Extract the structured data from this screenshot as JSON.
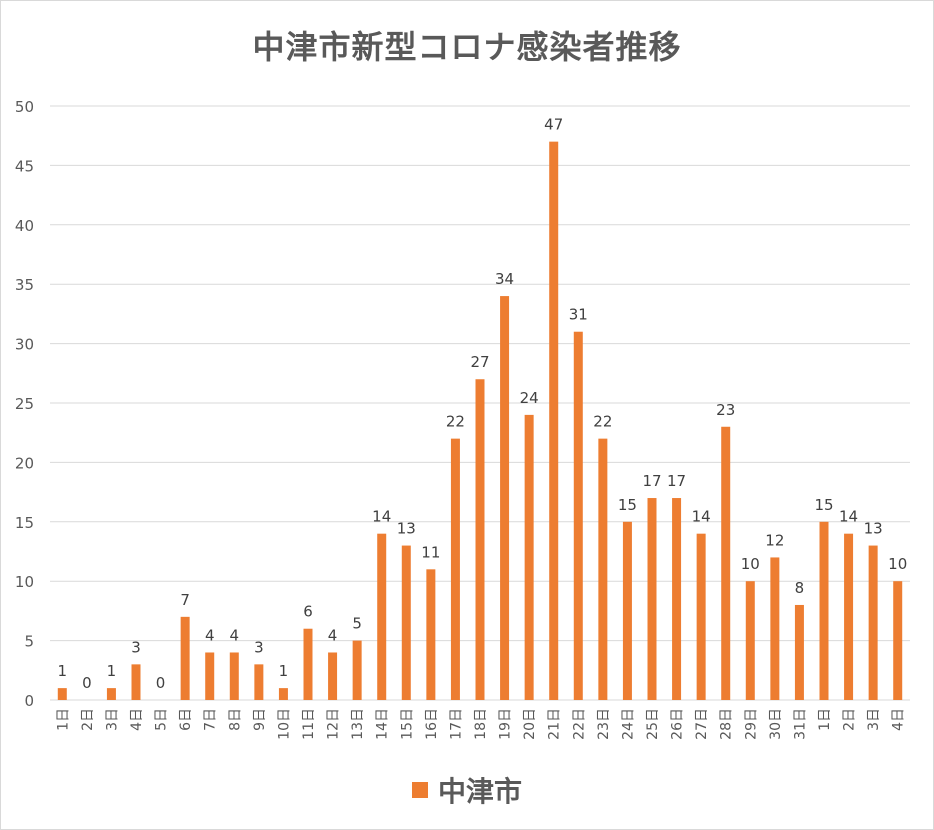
{
  "chart_data": {
    "type": "bar",
    "title": "中津市新型コロナ感染者推移",
    "categories": [
      "1日",
      "2日",
      "3日",
      "4日",
      "5日",
      "6日",
      "7日",
      "8日",
      "9日",
      "10日",
      "11日",
      "12日",
      "13日",
      "14日",
      "15日",
      "16日",
      "17日",
      "18日",
      "19日",
      "20日",
      "21日",
      "22日",
      "23日",
      "24日",
      "25日",
      "26日",
      "27日",
      "28日",
      "29日",
      "30日",
      "31日",
      "1日",
      "2日",
      "3日",
      "4日"
    ],
    "series": [
      {
        "name": "中津市",
        "values": [
          1,
          0,
          1,
          3,
          0,
          7,
          4,
          4,
          3,
          1,
          6,
          4,
          5,
          14,
          13,
          11,
          22,
          27,
          34,
          24,
          47,
          31,
          22,
          15,
          17,
          17,
          14,
          23,
          10,
          12,
          8,
          15,
          14,
          13,
          10
        ]
      }
    ],
    "ylim": [
      0,
      50
    ],
    "yticks": [
      0,
      5,
      10,
      15,
      20,
      25,
      30,
      35,
      40,
      45,
      50
    ],
    "grid": true,
    "legend_position": "bottom",
    "bar_color": "#ed7d31"
  }
}
